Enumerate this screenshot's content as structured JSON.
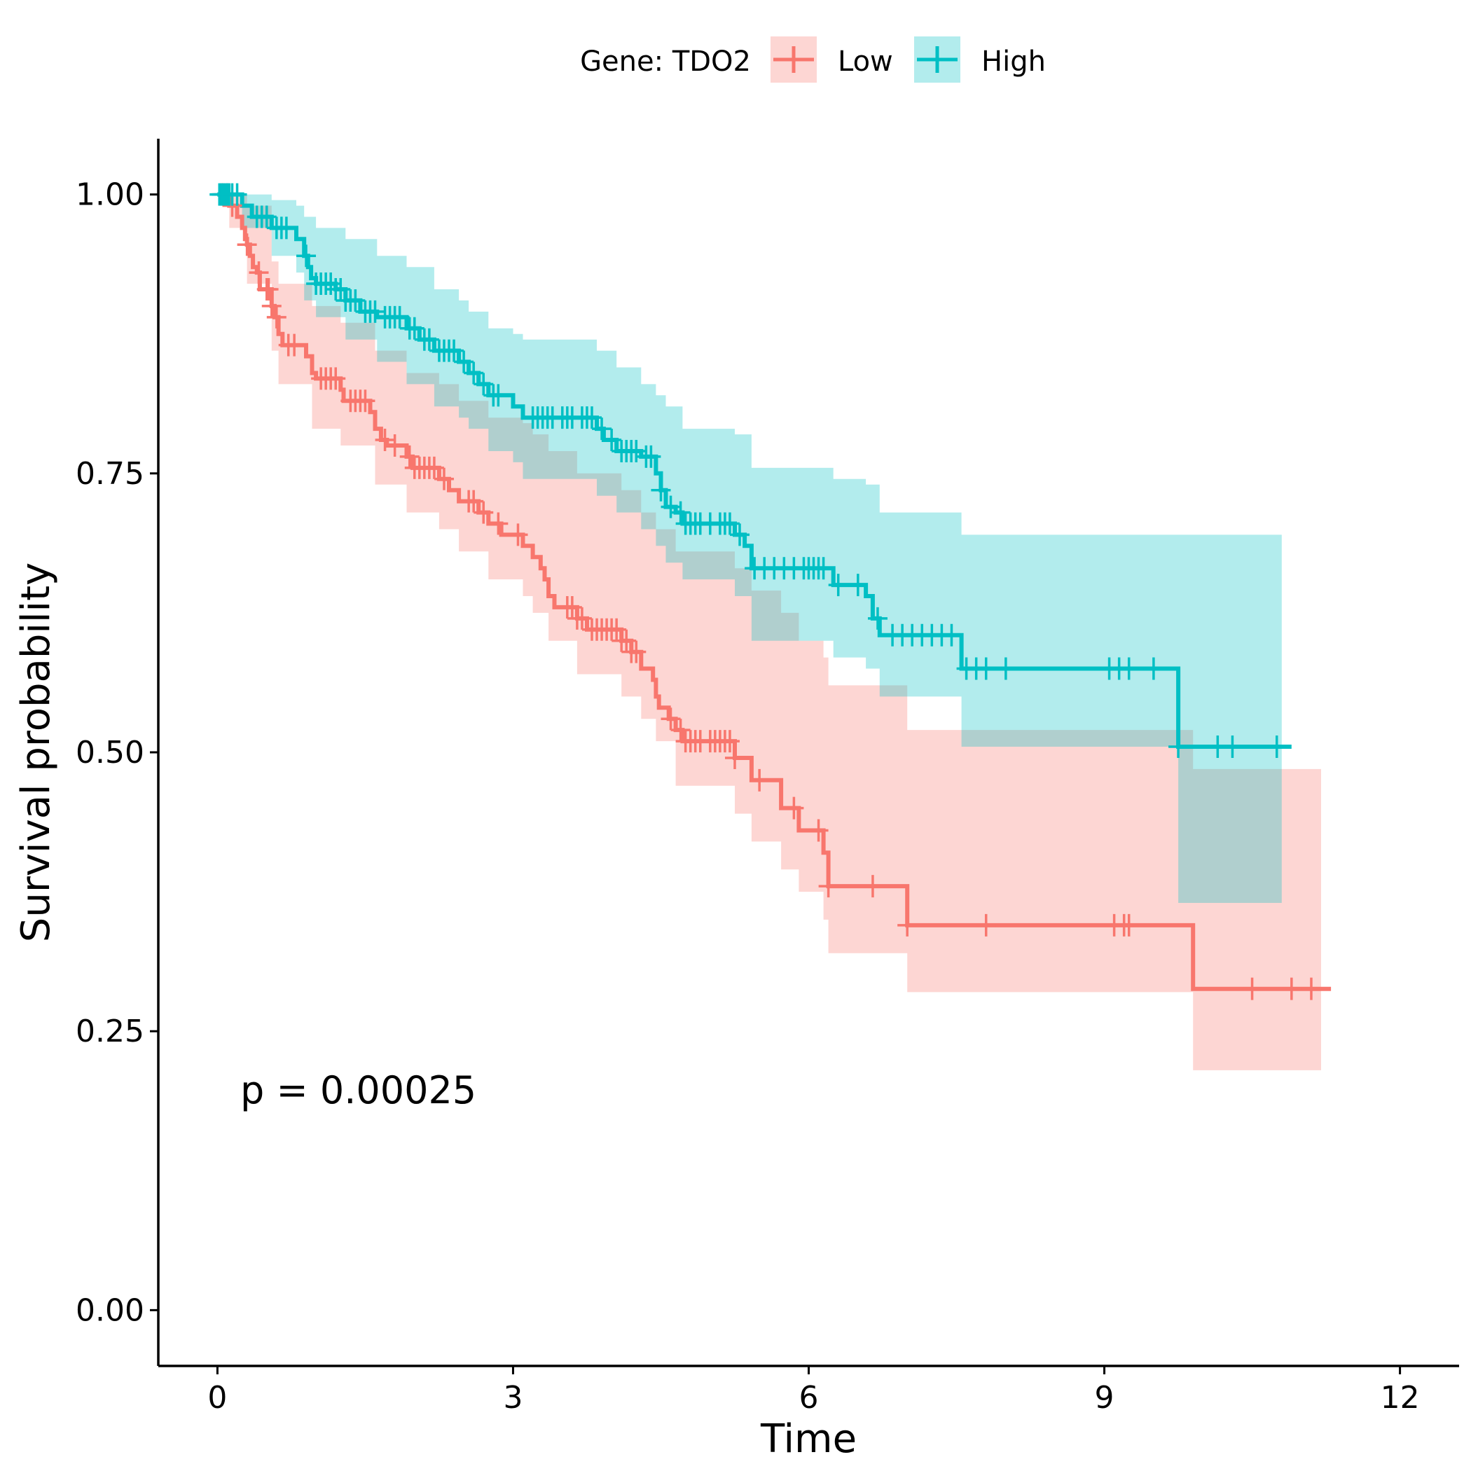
{
  "chart_data": {
    "type": "line",
    "subtype": "kaplan-meier",
    "title": "",
    "xlabel": "Time",
    "ylabel": "Survival probability",
    "xlim": [
      -0.6,
      12.6
    ],
    "ylim": [
      -0.05,
      1.05
    ],
    "x_ticks": [
      0,
      3,
      6,
      9,
      12
    ],
    "y_ticks": [
      0,
      0.25,
      0.5,
      0.75,
      1.0
    ],
    "y_tick_labels": [
      "0.00",
      "0.25",
      "0.50",
      "0.75",
      "1.00"
    ],
    "x_tick_labels": [
      "0",
      "3",
      "6",
      "9",
      "12"
    ],
    "grid": false,
    "legend": {
      "title": "Gene: TDO2",
      "position": "top"
    },
    "annotation": "p = 0.00025",
    "series": [
      {
        "name": "Low",
        "color": "#F8766D",
        "steps": [
          [
            0,
            1.0
          ],
          [
            0.12,
            0.99
          ],
          [
            0.2,
            0.98
          ],
          [
            0.25,
            0.97
          ],
          [
            0.28,
            0.96
          ],
          [
            0.3,
            0.955
          ],
          [
            0.33,
            0.945
          ],
          [
            0.36,
            0.935
          ],
          [
            0.4,
            0.93
          ],
          [
            0.43,
            0.915
          ],
          [
            0.55,
            0.9
          ],
          [
            0.58,
            0.89
          ],
          [
            0.62,
            0.875
          ],
          [
            0.66,
            0.865
          ],
          [
            0.9,
            0.855
          ],
          [
            0.96,
            0.84
          ],
          [
            1.0,
            0.835
          ],
          [
            1.25,
            0.825
          ],
          [
            1.28,
            0.815
          ],
          [
            1.55,
            0.805
          ],
          [
            1.6,
            0.79
          ],
          [
            1.66,
            0.78
          ],
          [
            1.72,
            0.775
          ],
          [
            1.92,
            0.765
          ],
          [
            1.98,
            0.755
          ],
          [
            2.25,
            0.745
          ],
          [
            2.35,
            0.735
          ],
          [
            2.45,
            0.725
          ],
          [
            2.65,
            0.715
          ],
          [
            2.75,
            0.705
          ],
          [
            2.88,
            0.695
          ],
          [
            3.1,
            0.685
          ],
          [
            3.2,
            0.675
          ],
          [
            3.28,
            0.665
          ],
          [
            3.32,
            0.655
          ],
          [
            3.36,
            0.64
          ],
          [
            3.42,
            0.63
          ],
          [
            3.65,
            0.62
          ],
          [
            3.75,
            0.61
          ],
          [
            4.1,
            0.6
          ],
          [
            4.2,
            0.59
          ],
          [
            4.3,
            0.575
          ],
          [
            4.42,
            0.565
          ],
          [
            4.45,
            0.55
          ],
          [
            4.48,
            0.54
          ],
          [
            4.58,
            0.53
          ],
          [
            4.65,
            0.52
          ],
          [
            4.72,
            0.51
          ],
          [
            5.25,
            0.495
          ],
          [
            5.42,
            0.475
          ],
          [
            5.72,
            0.45
          ],
          [
            5.9,
            0.43
          ],
          [
            6.15,
            0.41
          ],
          [
            6.2,
            0.38
          ],
          [
            7.0,
            0.345
          ],
          [
            9.9,
            0.288
          ],
          [
            11.3,
            0.288
          ]
        ],
        "ci_steps": [
          [
            0,
            1.0,
            1.0
          ],
          [
            0.12,
            0.97,
            1.0
          ],
          [
            0.3,
            0.92,
            0.99
          ],
          [
            0.55,
            0.86,
            0.94
          ],
          [
            0.62,
            0.83,
            0.92
          ],
          [
            0.96,
            0.79,
            0.9
          ],
          [
            1.25,
            0.775,
            0.885
          ],
          [
            1.6,
            0.74,
            0.86
          ],
          [
            1.92,
            0.715,
            0.84
          ],
          [
            2.25,
            0.7,
            0.83
          ],
          [
            2.45,
            0.68,
            0.815
          ],
          [
            2.75,
            0.655,
            0.8
          ],
          [
            3.1,
            0.64,
            0.795
          ],
          [
            3.2,
            0.625,
            0.785
          ],
          [
            3.36,
            0.6,
            0.77
          ],
          [
            3.65,
            0.57,
            0.75
          ],
          [
            4.1,
            0.55,
            0.735
          ],
          [
            4.3,
            0.53,
            0.715
          ],
          [
            4.45,
            0.51,
            0.7
          ],
          [
            4.65,
            0.47,
            0.68
          ],
          [
            5.25,
            0.445,
            0.665
          ],
          [
            5.42,
            0.42,
            0.645
          ],
          [
            5.72,
            0.395,
            0.625
          ],
          [
            5.9,
            0.375,
            0.6
          ],
          [
            6.15,
            0.35,
            0.585
          ],
          [
            6.2,
            0.32,
            0.56
          ],
          [
            7.0,
            0.285,
            0.52
          ],
          [
            9.9,
            0.215,
            0.485
          ],
          [
            11.2,
            0.215,
            0.485
          ]
        ],
        "censor_x": [
          0.05,
          0.1,
          0.15,
          0.3,
          0.42,
          0.5,
          0.52,
          0.55,
          0.6,
          0.72,
          0.78,
          1.05,
          1.1,
          1.15,
          1.2,
          1.35,
          1.4,
          1.45,
          1.5,
          1.7,
          1.8,
          1.95,
          2.0,
          2.05,
          2.1,
          2.15,
          2.2,
          2.3,
          2.55,
          2.6,
          2.7,
          2.85,
          3.05,
          3.55,
          3.6,
          3.65,
          3.7,
          3.8,
          3.85,
          3.9,
          3.95,
          4.0,
          4.05,
          4.1,
          4.15,
          4.2,
          4.25,
          4.6,
          4.7,
          4.75,
          4.8,
          4.85,
          4.9,
          5.0,
          5.05,
          5.1,
          5.15,
          5.2,
          5.25,
          5.5,
          5.85,
          6.1,
          6.2,
          6.65,
          7.0,
          7.8,
          9.1,
          9.2,
          9.25,
          10.5,
          10.9,
          11.1
        ]
      },
      {
        "name": "High",
        "color": "#00BFC4",
        "steps": [
          [
            0,
            1.0
          ],
          [
            0.25,
            0.99
          ],
          [
            0.35,
            0.98
          ],
          [
            0.55,
            0.97
          ],
          [
            0.8,
            0.96
          ],
          [
            0.88,
            0.945
          ],
          [
            0.92,
            0.935
          ],
          [
            0.95,
            0.925
          ],
          [
            1.0,
            0.92
          ],
          [
            1.2,
            0.915
          ],
          [
            1.3,
            0.905
          ],
          [
            1.45,
            0.895
          ],
          [
            1.62,
            0.89
          ],
          [
            1.92,
            0.88
          ],
          [
            2.05,
            0.87
          ],
          [
            2.2,
            0.86
          ],
          [
            2.45,
            0.85
          ],
          [
            2.55,
            0.84
          ],
          [
            2.65,
            0.83
          ],
          [
            2.75,
            0.82
          ],
          [
            3.0,
            0.81
          ],
          [
            3.1,
            0.8
          ],
          [
            3.85,
            0.79
          ],
          [
            3.92,
            0.78
          ],
          [
            4.05,
            0.77
          ],
          [
            4.3,
            0.765
          ],
          [
            4.45,
            0.75
          ],
          [
            4.5,
            0.735
          ],
          [
            4.55,
            0.72
          ],
          [
            4.65,
            0.715
          ],
          [
            4.72,
            0.705
          ],
          [
            5.25,
            0.695
          ],
          [
            5.35,
            0.685
          ],
          [
            5.42,
            0.665
          ],
          [
            6.25,
            0.65
          ],
          [
            6.58,
            0.64
          ],
          [
            6.65,
            0.62
          ],
          [
            6.72,
            0.605
          ],
          [
            7.55,
            0.575
          ],
          [
            9.75,
            0.505
          ],
          [
            10.9,
            0.505
          ]
        ],
        "ci_steps": [
          [
            0,
            1.0,
            1.0
          ],
          [
            0.25,
            0.97,
            1.0
          ],
          [
            0.55,
            0.945,
            0.995
          ],
          [
            0.8,
            0.93,
            0.99
          ],
          [
            0.88,
            0.905,
            0.98
          ],
          [
            1.0,
            0.89,
            0.97
          ],
          [
            1.3,
            0.87,
            0.96
          ],
          [
            1.62,
            0.85,
            0.945
          ],
          [
            1.92,
            0.83,
            0.935
          ],
          [
            2.2,
            0.81,
            0.915
          ],
          [
            2.45,
            0.8,
            0.905
          ],
          [
            2.55,
            0.79,
            0.895
          ],
          [
            2.75,
            0.77,
            0.88
          ],
          [
            3.0,
            0.76,
            0.875
          ],
          [
            3.1,
            0.745,
            0.87
          ],
          [
            3.85,
            0.73,
            0.86
          ],
          [
            4.05,
            0.715,
            0.845
          ],
          [
            4.3,
            0.7,
            0.83
          ],
          [
            4.45,
            0.685,
            0.82
          ],
          [
            4.55,
            0.67,
            0.81
          ],
          [
            4.72,
            0.655,
            0.79
          ],
          [
            5.25,
            0.64,
            0.785
          ],
          [
            5.42,
            0.6,
            0.755
          ],
          [
            6.25,
            0.585,
            0.745
          ],
          [
            6.58,
            0.575,
            0.74
          ],
          [
            6.72,
            0.55,
            0.715
          ],
          [
            7.55,
            0.505,
            0.695
          ],
          [
            9.75,
            0.365,
            0.695
          ],
          [
            10.8,
            0.365,
            0.695
          ]
        ],
        "censor_x": [
          0.02,
          0.04,
          0.06,
          0.08,
          0.1,
          0.12,
          0.15,
          0.2,
          0.4,
          0.45,
          0.5,
          0.6,
          0.65,
          0.7,
          0.9,
          1.0,
          1.05,
          1.1,
          1.15,
          1.2,
          1.25,
          1.3,
          1.35,
          1.4,
          1.5,
          1.55,
          1.6,
          1.7,
          1.75,
          1.8,
          1.85,
          1.95,
          2.0,
          2.1,
          2.15,
          2.25,
          2.3,
          2.35,
          2.4,
          2.5,
          2.6,
          2.7,
          2.8,
          2.85,
          3.2,
          3.25,
          3.3,
          3.35,
          3.4,
          3.5,
          3.55,
          3.6,
          3.7,
          3.75,
          3.8,
          3.9,
          4.0,
          4.1,
          4.15,
          4.2,
          4.25,
          4.35,
          4.4,
          4.5,
          4.6,
          4.7,
          4.75,
          4.8,
          4.85,
          4.9,
          5.0,
          5.1,
          5.15,
          5.2,
          5.3,
          5.45,
          5.55,
          5.65,
          5.75,
          5.85,
          5.95,
          6.0,
          6.05,
          6.1,
          6.15,
          6.3,
          6.5,
          6.7,
          6.85,
          6.95,
          7.05,
          7.15,
          7.25,
          7.35,
          7.45,
          7.6,
          7.7,
          7.8,
          8.0,
          9.05,
          9.15,
          9.25,
          9.5,
          9.75,
          10.15,
          10.3,
          10.75
        ]
      }
    ]
  }
}
